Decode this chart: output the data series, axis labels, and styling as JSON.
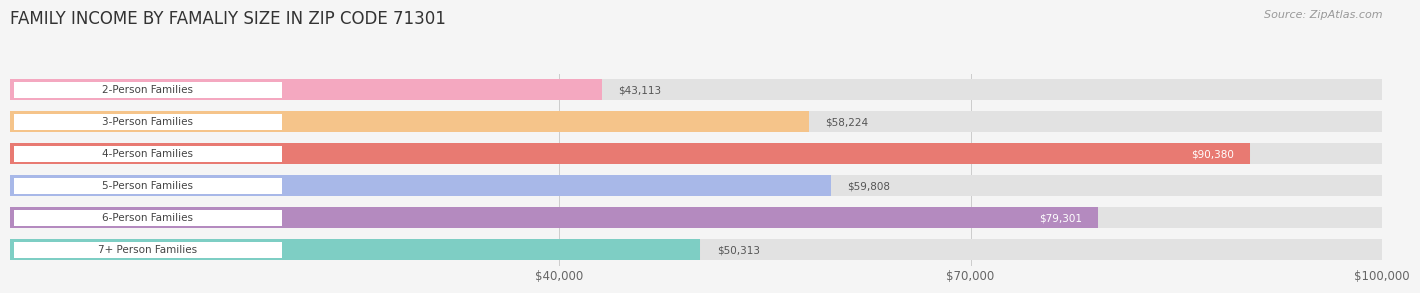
{
  "title": "FAMILY INCOME BY FAMALIY SIZE IN ZIP CODE 71301",
  "source": "Source: ZipAtlas.com",
  "categories": [
    "2-Person Families",
    "3-Person Families",
    "4-Person Families",
    "5-Person Families",
    "6-Person Families",
    "7+ Person Families"
  ],
  "values": [
    43113,
    58224,
    90380,
    59808,
    79301,
    50313
  ],
  "bar_colors": [
    "#f4a8c0",
    "#f5c48a",
    "#e87a72",
    "#a8b8e8",
    "#b48abf",
    "#7ecec4"
  ],
  "bg_color": "#f5f5f5",
  "bar_bg_color": "#e2e2e2",
  "xmin": 0,
  "xmax": 100000,
  "xticks": [
    40000,
    70000,
    100000
  ],
  "xtick_labels": [
    "$40,000",
    "$70,000",
    "$100,000"
  ],
  "title_fontsize": 12,
  "label_fontsize": 7.5,
  "value_fontsize": 7.5,
  "source_fontsize": 8,
  "bar_height": 0.65
}
